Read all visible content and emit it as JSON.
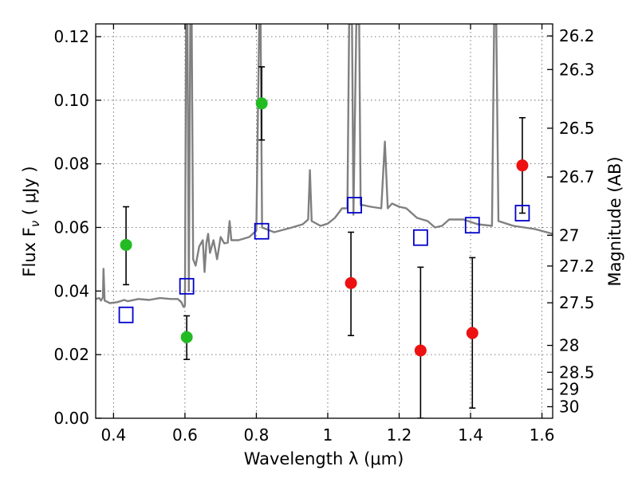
{
  "chart_data": {
    "type": "scatter",
    "xlabel": "Wavelength  λ (μm)",
    "ylabel": "Flux  F",
    "ylabel_sub": "ν",
    "ylabel_unit": " ( μJy )",
    "y2label": "Magnitude (AB)",
    "xlim": [
      0.35,
      1.63
    ],
    "ylim": [
      0.0,
      0.124
    ],
    "grid": true,
    "x_ticks": [
      {
        "value": 0.4,
        "label": "0.4"
      },
      {
        "value": 0.6,
        "label": "0.6"
      },
      {
        "value": 0.8,
        "label": "0.8"
      },
      {
        "value": 1.0,
        "label": "1"
      },
      {
        "value": 1.2,
        "label": "1.2"
      },
      {
        "value": 1.4,
        "label": "1.4"
      },
      {
        "value": 1.6,
        "label": "1.6"
      }
    ],
    "y_ticks": [
      {
        "value": 0.0,
        "label": "0.00"
      },
      {
        "value": 0.02,
        "label": "0.02"
      },
      {
        "value": 0.04,
        "label": "0.04"
      },
      {
        "value": 0.06,
        "label": "0.06"
      },
      {
        "value": 0.08,
        "label": "0.08"
      },
      {
        "value": 0.1,
        "label": "0.10"
      },
      {
        "value": 0.12,
        "label": "0.12"
      }
    ],
    "y2_ticks": [
      {
        "value": 26.2,
        "label": "26.2"
      },
      {
        "value": 26.3,
        "label": "26.3"
      },
      {
        "value": 26.5,
        "label": "26.5"
      },
      {
        "value": 26.7,
        "label": "26.7"
      },
      {
        "value": 27.0,
        "label": "27"
      },
      {
        "value": 27.2,
        "label": "27.2"
      },
      {
        "value": 27.5,
        "label": "27.5"
      },
      {
        "value": 28.0,
        "label": "28"
      },
      {
        "value": 28.5,
        "label": "28.5"
      },
      {
        "value": 29.0,
        "label": "29"
      },
      {
        "value": 30.0,
        "label": "30"
      }
    ],
    "series": [
      {
        "name": "model spectrum",
        "kind": "line",
        "color": "#808080",
        "points": [
          [
            0.35,
            0.0375
          ],
          [
            0.36,
            0.0378
          ],
          [
            0.365,
            0.037
          ],
          [
            0.37,
            0.038
          ],
          [
            0.372,
            0.047
          ],
          [
            0.375,
            0.037
          ],
          [
            0.39,
            0.0362
          ],
          [
            0.41,
            0.0365
          ],
          [
            0.43,
            0.0372
          ],
          [
            0.44,
            0.0368
          ],
          [
            0.47,
            0.0375
          ],
          [
            0.5,
            0.0372
          ],
          [
            0.53,
            0.0378
          ],
          [
            0.56,
            0.0375
          ],
          [
            0.58,
            0.0375
          ],
          [
            0.59,
            0.0365
          ],
          [
            0.596,
            0.035
          ],
          [
            0.6,
            0.0355
          ],
          [
            0.603,
            0.124
          ],
          [
            0.607,
            0.124
          ],
          [
            0.611,
            0.04
          ],
          [
            0.615,
            0.124
          ],
          [
            0.619,
            0.124
          ],
          [
            0.623,
            0.05
          ],
          [
            0.63,
            0.048
          ],
          [
            0.64,
            0.054
          ],
          [
            0.65,
            0.056
          ],
          [
            0.655,
            0.046
          ],
          [
            0.66,
            0.055
          ],
          [
            0.665,
            0.058
          ],
          [
            0.67,
            0.052
          ],
          [
            0.68,
            0.056
          ],
          [
            0.69,
            0.05
          ],
          [
            0.7,
            0.057
          ],
          [
            0.71,
            0.055
          ],
          [
            0.72,
            0.0552
          ],
          [
            0.725,
            0.062
          ],
          [
            0.73,
            0.056
          ],
          [
            0.75,
            0.056
          ],
          [
            0.78,
            0.057
          ],
          [
            0.8,
            0.059
          ],
          [
            0.808,
            0.124
          ],
          [
            0.812,
            0.124
          ],
          [
            0.816,
            0.06
          ],
          [
            0.85,
            0.0585
          ],
          [
            0.9,
            0.06
          ],
          [
            0.93,
            0.061
          ],
          [
            0.945,
            0.0625
          ],
          [
            0.95,
            0.078
          ],
          [
            0.955,
            0.062
          ],
          [
            0.98,
            0.0605
          ],
          [
            1.0,
            0.0612
          ],
          [
            1.02,
            0.063
          ],
          [
            1.04,
            0.066
          ],
          [
            1.055,
            0.066
          ],
          [
            1.06,
            0.124
          ],
          [
            1.068,
            0.124
          ],
          [
            1.072,
            0.064
          ],
          [
            1.08,
            0.124
          ],
          [
            1.088,
            0.124
          ],
          [
            1.092,
            0.067
          ],
          [
            1.1,
            0.067
          ],
          [
            1.12,
            0.0665
          ],
          [
            1.15,
            0.066
          ],
          [
            1.16,
            0.087
          ],
          [
            1.168,
            0.066
          ],
          [
            1.18,
            0.0675
          ],
          [
            1.2,
            0.0665
          ],
          [
            1.22,
            0.066
          ],
          [
            1.25,
            0.063
          ],
          [
            1.28,
            0.062
          ],
          [
            1.3,
            0.06
          ],
          [
            1.32,
            0.0605
          ],
          [
            1.34,
            0.0625
          ],
          [
            1.38,
            0.0625
          ],
          [
            1.42,
            0.061
          ],
          [
            1.46,
            0.0605
          ],
          [
            1.466,
            0.124
          ],
          [
            1.472,
            0.124
          ],
          [
            1.478,
            0.062
          ],
          [
            1.52,
            0.0605
          ],
          [
            1.55,
            0.06
          ],
          [
            1.58,
            0.0595
          ],
          [
            1.63,
            0.058
          ]
        ]
      },
      {
        "name": "green points",
        "kind": "scatter",
        "marker": "circle",
        "color": "#22bb22",
        "points": [
          {
            "x": 0.435,
            "y": 0.0545,
            "err_lo": 0.042,
            "err_hi": 0.0665
          },
          {
            "x": 0.605,
            "y": 0.0255,
            "err_lo": 0.0185,
            "err_hi": 0.0322
          },
          {
            "x": 0.815,
            "y": 0.099,
            "err_lo": 0.0875,
            "err_hi": 0.1105
          }
        ]
      },
      {
        "name": "red points",
        "kind": "scatter",
        "marker": "circle",
        "color": "#ee1111",
        "points": [
          {
            "x": 1.065,
            "y": 0.0425,
            "err_lo": 0.026,
            "err_hi": 0.0585
          },
          {
            "x": 1.26,
            "y": 0.0213,
            "err_lo": 0.0,
            "err_hi": 0.0475
          },
          {
            "x": 1.405,
            "y": 0.0268,
            "err_lo": 0.0032,
            "err_hi": 0.0505
          },
          {
            "x": 1.545,
            "y": 0.0795,
            "err_lo": 0.0645,
            "err_hi": 0.0945
          }
        ]
      },
      {
        "name": "blue squares",
        "kind": "scatter",
        "marker": "square",
        "color": "#0000cc",
        "points": [
          {
            "x": 0.435,
            "y": 0.0325
          },
          {
            "x": 0.605,
            "y": 0.0415
          },
          {
            "x": 0.815,
            "y": 0.0588
          },
          {
            "x": 1.075,
            "y": 0.067
          },
          {
            "x": 1.26,
            "y": 0.0568
          },
          {
            "x": 1.405,
            "y": 0.0607
          },
          {
            "x": 1.545,
            "y": 0.0645
          }
        ]
      }
    ]
  }
}
